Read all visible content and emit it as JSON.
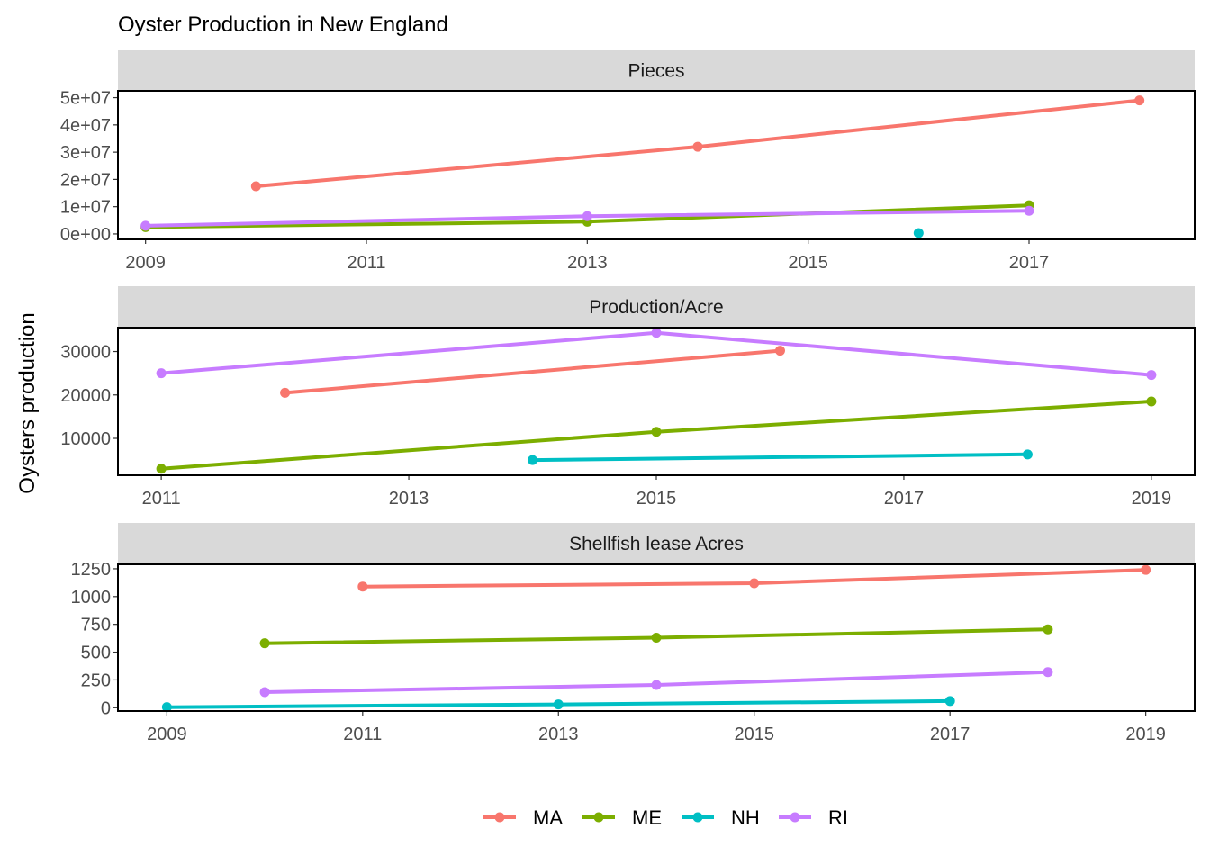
{
  "chart_data": {
    "type": "line",
    "title": "Oyster Production in New England",
    "ylabel": "Oysters production",
    "xlabel": "",
    "colors": {
      "MA": "#F8766D",
      "ME": "#7CAE00",
      "NH": "#00BFC4",
      "RI": "#C77CFF"
    },
    "legend": {
      "position": "bottom",
      "entries": [
        "MA",
        "ME",
        "NH",
        "RI"
      ]
    },
    "panels": [
      {
        "strip": "Pieces",
        "xlim": [
          2008.75,
          2018.5
        ],
        "ylim": [
          -2000000,
          52500000
        ],
        "xticks": [
          2009,
          2011,
          2013,
          2015,
          2017
        ],
        "xtick_labels": [
          "2009",
          "2011",
          "2013",
          "2015",
          "2017"
        ],
        "yticks": [
          0,
          10000000,
          20000000,
          30000000,
          40000000,
          50000000
        ],
        "ytick_labels": [
          "0e+00",
          "1e+07",
          "2e+07",
          "3e+07",
          "4e+07",
          "5e+07"
        ],
        "series": [
          {
            "name": "MA",
            "points": [
              [
                2010,
                17500000
              ],
              [
                2014,
                32000000
              ],
              [
                2018,
                49000000
              ]
            ]
          },
          {
            "name": "ME",
            "points": [
              [
                2009,
                2500000
              ],
              [
                2013,
                4500000
              ],
              [
                2017,
                10500000
              ]
            ]
          },
          {
            "name": "NH",
            "points": [
              [
                2016,
                300000
              ]
            ]
          },
          {
            "name": "RI",
            "points": [
              [
                2009,
                3000000
              ],
              [
                2013,
                6500000
              ],
              [
                2017,
                8500000
              ]
            ]
          }
        ]
      },
      {
        "strip": "Production/Acre",
        "xlim": [
          2010.65,
          2019.35
        ],
        "ylim": [
          1500,
          35500
        ],
        "xticks": [
          2011,
          2013,
          2015,
          2017,
          2019
        ],
        "xtick_labels": [
          "2011",
          "2013",
          "2015",
          "2017",
          "2019"
        ],
        "yticks": [
          10000,
          20000,
          30000
        ],
        "ytick_labels": [
          "10000",
          "20000",
          "30000"
        ],
        "series": [
          {
            "name": "MA",
            "points": [
              [
                2012,
                20500
              ],
              [
                2016,
                30200
              ]
            ]
          },
          {
            "name": "ME",
            "points": [
              [
                2011,
                3000
              ],
              [
                2015,
                11500
              ],
              [
                2019,
                18500
              ]
            ]
          },
          {
            "name": "NH",
            "points": [
              [
                2014,
                5000
              ],
              [
                2018,
                6300
              ]
            ]
          },
          {
            "name": "RI",
            "points": [
              [
                2011,
                25000
              ],
              [
                2015,
                34300
              ],
              [
                2019,
                24600
              ]
            ]
          }
        ]
      },
      {
        "strip": "Shellfish lease Acres",
        "xlim": [
          2008.5,
          2019.5
        ],
        "ylim": [
          -30,
          1290
        ],
        "xticks": [
          2009,
          2011,
          2013,
          2015,
          2017,
          2019
        ],
        "xtick_labels": [
          "2009",
          "2011",
          "2013",
          "2015",
          "2017",
          "2019"
        ],
        "yticks": [
          0,
          250,
          500,
          750,
          1000,
          1250
        ],
        "ytick_labels": [
          "0",
          "250",
          "500",
          "750",
          "1000",
          "1250"
        ],
        "series": [
          {
            "name": "MA",
            "points": [
              [
                2011,
                1090
              ],
              [
                2015,
                1120
              ],
              [
                2019,
                1240
              ]
            ]
          },
          {
            "name": "ME",
            "points": [
              [
                2010,
                580
              ],
              [
                2014,
                630
              ],
              [
                2018,
                705
              ]
            ]
          },
          {
            "name": "NH",
            "points": [
              [
                2009,
                5
              ],
              [
                2013,
                30
              ],
              [
                2017,
                60
              ]
            ]
          },
          {
            "name": "RI",
            "points": [
              [
                2010,
                140
              ],
              [
                2014,
                205
              ],
              [
                2018,
                320
              ]
            ]
          }
        ]
      }
    ]
  }
}
